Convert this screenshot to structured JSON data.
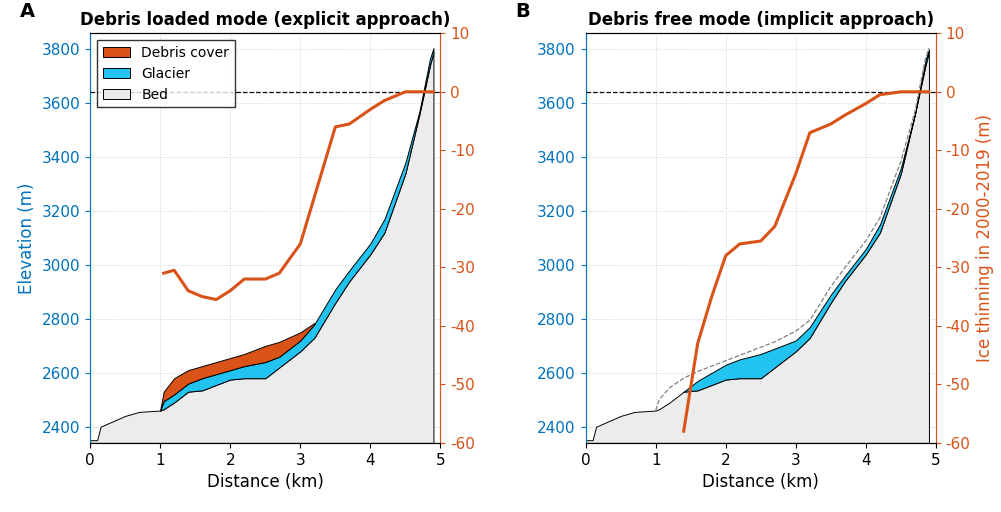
{
  "chart_data": [
    {
      "type": "line",
      "panel_label": "A",
      "title": "Debris loaded mode (explicit approach)",
      "xlabel": "Distance (km)",
      "ylabel": "Elevation (m)",
      "xlim": [
        0,
        5
      ],
      "xticks": [
        0,
        1,
        2,
        3,
        4,
        5
      ],
      "ylim": [
        2340,
        3860
      ],
      "yticks": [
        2400,
        2600,
        2800,
        3000,
        3200,
        3400,
        3600,
        3800
      ],
      "y2lim": [
        -60,
        10
      ],
      "y2ticks": [
        -60,
        -50,
        -40,
        -30,
        -20,
        -10,
        0,
        10
      ],
      "grid": true,
      "legend": "upper left",
      "x": [
        0,
        0.1,
        0.15,
        0.5,
        0.7,
        1.0,
        1.05,
        1.2,
        1.4,
        1.6,
        1.8,
        2.0,
        2.2,
        2.5,
        2.7,
        3.0,
        3.2,
        3.5,
        3.7,
        4.0,
        4.2,
        4.5,
        4.7,
        4.85,
        4.9,
        5.0
      ],
      "series": [
        {
          "name": "Bed",
          "type": "area",
          "color": "#ececec",
          "values": [
            2350,
            2350,
            2400,
            2440,
            2455,
            2460,
            2465,
            2490,
            2530,
            2535,
            2555,
            2575,
            2580,
            2580,
            2620,
            2680,
            2730,
            2860,
            2940,
            3040,
            3120,
            3340,
            3560,
            3740,
            3790,
            null
          ]
        },
        {
          "name": "Glacier",
          "type": "area",
          "color": "#22c3f0",
          "values": [
            null,
            null,
            null,
            null,
            null,
            2460,
            2495,
            2520,
            2560,
            2580,
            2595,
            2610,
            2625,
            2640,
            2660,
            2720,
            2780,
            2910,
            2980,
            3080,
            3170,
            3380,
            3570,
            3765,
            3805,
            null
          ]
        },
        {
          "name": "Debris cover",
          "type": "area",
          "color": "#d95319",
          "values": [
            null,
            null,
            null,
            null,
            null,
            2460,
            2530,
            2580,
            2610,
            2625,
            2640,
            2655,
            2670,
            2700,
            2715,
            2750,
            2785,
            null,
            null,
            null,
            null,
            null,
            null,
            null,
            null,
            null
          ]
        },
        {
          "type": "line",
          "axis": "y2",
          "color": "#000000",
          "line_style": "dashed",
          "values": [
            0,
            0,
            0,
            0,
            0,
            0,
            0,
            0,
            0,
            0,
            0,
            0,
            0,
            0,
            0,
            0,
            0,
            0,
            0,
            0,
            0,
            0,
            0,
            0,
            0,
            0
          ]
        },
        {
          "type": "line",
          "axis": "y2",
          "color": "#d95319",
          "line_style": "solid",
          "values": [
            null,
            null,
            null,
            null,
            null,
            null,
            -31,
            -30.5,
            -34,
            -35,
            -35.5,
            -34,
            -32,
            -32,
            -31,
            -26,
            -18,
            -6,
            -5.5,
            -3,
            -1.5,
            0,
            0,
            0,
            0,
            null
          ]
        }
      ]
    },
    {
      "type": "line",
      "panel_label": "B",
      "title": "Debris free mode (implicit approach)",
      "xlabel": "Distance (km)",
      "y2label": "Ice thinning in 2000-2019 (m)",
      "xlim": [
        0,
        5
      ],
      "xticks": [
        0,
        1,
        2,
        3,
        4,
        5
      ],
      "ylim": [
        2340,
        3860
      ],
      "yticks": [
        2400,
        2600,
        2800,
        3000,
        3200,
        3400,
        3600,
        3800
      ],
      "y2lim": [
        -60,
        10
      ],
      "y2ticks": [
        -60,
        -50,
        -40,
        -30,
        -20,
        -10,
        0,
        10
      ],
      "grid": true,
      "x": [
        0,
        0.1,
        0.15,
        0.5,
        0.7,
        1.0,
        1.05,
        1.2,
        1.4,
        1.6,
        1.8,
        2.0,
        2.2,
        2.5,
        2.7,
        3.0,
        3.2,
        3.5,
        3.7,
        4.0,
        4.2,
        4.5,
        4.7,
        4.85,
        4.9,
        5.0
      ],
      "series": [
        {
          "type": "area",
          "color": "#ececec",
          "values": [
            2350,
            2350,
            2400,
            2440,
            2455,
            2460,
            2465,
            2490,
            2530,
            2535,
            2555,
            2575,
            2580,
            2580,
            2620,
            2680,
            2730,
            2860,
            2940,
            3040,
            3120,
            3340,
            3560,
            3740,
            3790,
            null
          ]
        },
        {
          "type": "area",
          "color": "#22c3f0",
          "values": [
            null,
            null,
            null,
            null,
            null,
            null,
            null,
            null,
            2530,
            2570,
            2600,
            2630,
            2650,
            2670,
            2690,
            2720,
            2770,
            2890,
            2960,
            3060,
            3150,
            3360,
            3560,
            3760,
            3800,
            null
          ]
        },
        {
          "type": "line",
          "color": "#808080",
          "line_style": "dashed",
          "values": [
            null,
            null,
            null,
            null,
            null,
            2460,
            2500,
            2545,
            2580,
            2605,
            2625,
            2645,
            2665,
            2695,
            2715,
            2755,
            2795,
            2920,
            2990,
            3090,
            3175,
            3385,
            3570,
            3765,
            3805,
            null
          ]
        },
        {
          "type": "line",
          "axis": "y2",
          "color": "#000000",
          "line_style": "dashed",
          "values": [
            0,
            0,
            0,
            0,
            0,
            0,
            0,
            0,
            0,
            0,
            0,
            0,
            0,
            0,
            0,
            0,
            0,
            0,
            0,
            0,
            0,
            0,
            0,
            0,
            0,
            0
          ]
        },
        {
          "type": "line",
          "axis": "y2",
          "color": "#d95319",
          "line_style": "solid",
          "values": [
            null,
            null,
            null,
            null,
            null,
            null,
            null,
            null,
            -58,
            -43,
            -35,
            -28,
            -26,
            -25.5,
            -23,
            -14,
            -7,
            -5.5,
            -4,
            -2,
            -0.5,
            0,
            0,
            0,
            0,
            null
          ]
        }
      ]
    }
  ]
}
